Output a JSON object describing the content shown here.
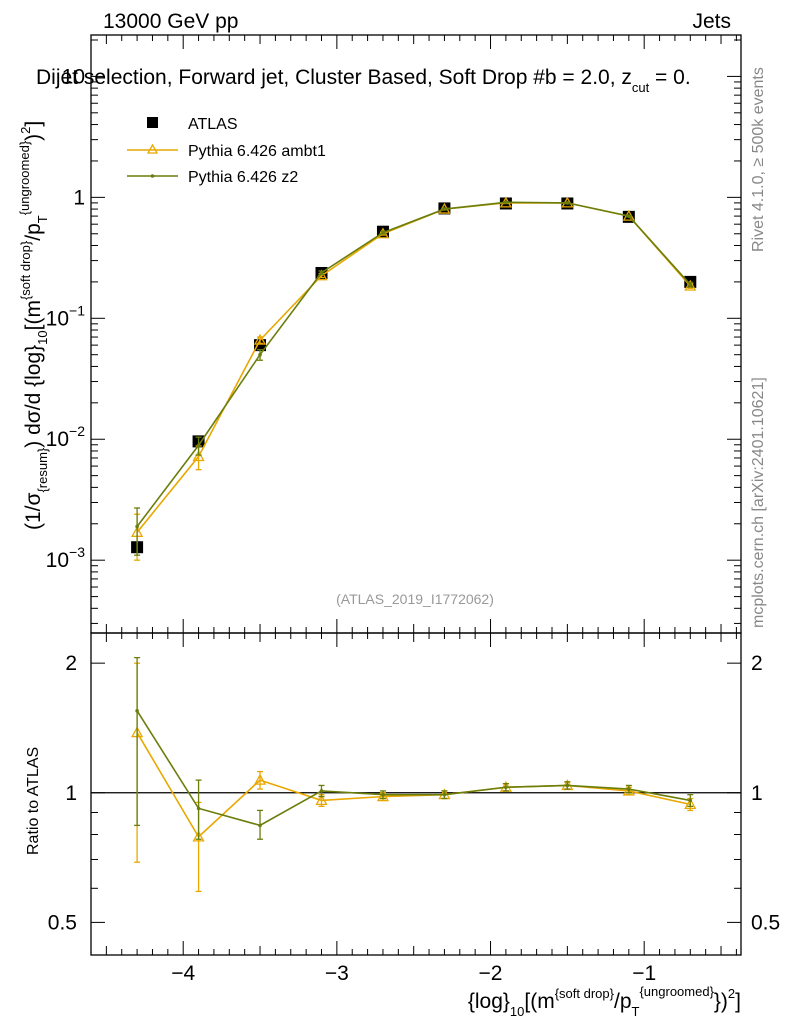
{
  "header": {
    "left": "13000 GeV pp",
    "right": "Jets",
    "title": "Dijet selection, Forward jet, Cluster Based, Soft Drop #b = 2.0, z_cut = 0.",
    "title_main": "Dijet selection, Forward jet, Cluster Based, Soft Drop #",
    "title_beta": "b",
    "title_eq": " = 2.0, z",
    "title_sub": "cut",
    "title_tail": " = 0."
  },
  "side_labels": {
    "rivet": "Rivet 4.1.0, ≥ 500k events",
    "mcplots": "mcplots.cern.ch [arXiv:2401.10621]"
  },
  "watermark": "(ATLAS_2019_I1772062)",
  "legend": [
    {
      "label": "ATLAS",
      "style": "data"
    },
    {
      "label": "Pythia 6.426 ambt1",
      "style": "ambt1"
    },
    {
      "label": "Pythia 6.426 z2",
      "style": "z2"
    }
  ],
  "colors": {
    "data": "#000000",
    "ambt1": "#e8a800",
    "z2": "#6b7d0b",
    "ref_line": "#000000"
  },
  "chart_data": [
    {
      "type": "line",
      "panel": "main",
      "yscale": "log",
      "ylabel_parts": {
        "a": "(1/σ",
        "a_sub": "{resum}",
        "b": ") dσ/d {log}",
        "b_sub": "10",
        "c": "[(m",
        "c_sup": "{soft drop}",
        "d": "/p",
        "d_sub": "T",
        "d_sup": "{ungroomed}",
        "e": ")",
        "e_sup": "2",
        "f": "]"
      },
      "xlim": [
        -4.6,
        -0.37
      ],
      "ylim": [
        0.00025,
        22
      ],
      "yticks": [
        {
          "value": 0.001,
          "base": "10",
          "exp": "−3"
        },
        {
          "value": 0.01,
          "base": "10",
          "exp": "−2"
        },
        {
          "value": 0.1,
          "base": "10",
          "exp": "−1"
        },
        {
          "value": 1,
          "base": "1",
          "exp": ""
        },
        {
          "value": 10,
          "base": "10",
          "exp": ""
        }
      ],
      "x": [
        -4.3,
        -3.9,
        -3.5,
        -3.1,
        -2.7,
        -2.3,
        -1.9,
        -1.5,
        -1.1,
        -0.7
      ],
      "series": [
        {
          "name": "ATLAS",
          "style": "data",
          "values": [
            0.00128,
            0.0096,
            0.06,
            0.237,
            0.52,
            0.81,
            0.89,
            0.89,
            0.69,
            0.2
          ]
        },
        {
          "name": "Pythia 6.426 ambt1",
          "style": "ambt1",
          "values": [
            0.0017,
            0.0072,
            0.066,
            0.225,
            0.5,
            0.8,
            0.9,
            0.9,
            0.7,
            0.185
          ],
          "errors": [
            0.0007,
            0.0016,
            0.004,
            0.008,
            0.012,
            0.01,
            0.01,
            0.01,
            0.01,
            0.008
          ]
        },
        {
          "name": "Pythia 6.426 z2",
          "style": "z2",
          "values": [
            0.0019,
            0.0089,
            0.05,
            0.238,
            0.51,
            0.8,
            0.91,
            0.9,
            0.7,
            0.19
          ],
          "errors": [
            0.0008,
            0.0015,
            0.005,
            0.008,
            0.012,
            0.01,
            0.01,
            0.01,
            0.01,
            0.008
          ]
        }
      ]
    },
    {
      "type": "line",
      "panel": "ratio",
      "yscale": "log",
      "ylabel": "Ratio to ATLAS",
      "xlabel_parts": {
        "a": "{log}",
        "a_sub": "10",
        "b": "[(m",
        "b_sup": "{soft drop}",
        "c": "/p",
        "c_sub": "T",
        "c_sup": "{ungroomed}",
        "d": "})",
        "d_sup": "2",
        "e": "]"
      },
      "xlim": [
        -4.6,
        -0.37
      ],
      "ylim": [
        0.42,
        2.35
      ],
      "xticks": [
        {
          "value": -4,
          "label": "−4"
        },
        {
          "value": -3,
          "label": "−3"
        },
        {
          "value": -2,
          "label": "−2"
        },
        {
          "value": -1,
          "label": "−1"
        }
      ],
      "yticks": [
        {
          "value": 0.5,
          "label": "0.5"
        },
        {
          "value": 1,
          "label": "1"
        },
        {
          "value": 2,
          "label": "2"
        }
      ],
      "reference": 1,
      "x": [
        -4.3,
        -3.9,
        -3.5,
        -3.1,
        -2.7,
        -2.3,
        -1.9,
        -1.5,
        -1.1,
        -0.7
      ],
      "series": [
        {
          "name": "Pythia 6.426 ambt1",
          "style": "ambt1",
          "values": [
            1.38,
            0.79,
            1.07,
            0.96,
            0.98,
            0.99,
            1.03,
            1.04,
            1.01,
            0.94
          ],
          "err_lo": [
            0.69,
            0.59,
            1.02,
            0.93,
            0.96,
            0.97,
            1.01,
            1.02,
            0.99,
            0.91
          ],
          "err_hi": [
            2.0,
            0.95,
            1.12,
            0.99,
            1.0,
            1.01,
            1.05,
            1.06,
            1.03,
            0.97
          ]
        },
        {
          "name": "Pythia 6.426 z2",
          "style": "z2",
          "values": [
            1.55,
            0.92,
            0.84,
            1.01,
            0.99,
            0.99,
            1.03,
            1.04,
            1.02,
            0.96
          ],
          "err_lo": [
            0.84,
            0.78,
            0.78,
            0.98,
            0.97,
            0.97,
            1.01,
            1.02,
            1.0,
            0.93
          ],
          "err_hi": [
            2.06,
            1.07,
            0.91,
            1.04,
            1.01,
            1.01,
            1.05,
            1.06,
            1.04,
            0.99
          ]
        }
      ]
    }
  ]
}
